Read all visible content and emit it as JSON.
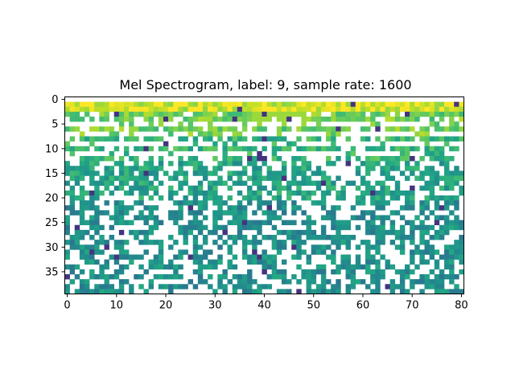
{
  "chart_data": {
    "type": "heatmap",
    "title": "Mel Spectrogram, label: 9, sample rate: 1600",
    "xlabel": "",
    "ylabel": "",
    "xlim": [
      -0.5,
      80.5
    ],
    "ylim": [
      39.5,
      -0.5
    ],
    "n_cols": 81,
    "n_rows": 40,
    "x_ticks": [
      0,
      10,
      20,
      30,
      40,
      50,
      60,
      70,
      80
    ],
    "y_ticks": [
      0,
      5,
      10,
      15,
      20,
      25,
      30,
      35
    ],
    "colormap": "viridis",
    "missing_color": "#ffffff",
    "grid": false,
    "legend": "none",
    "description_of_values": "log-mel energy per (frame, mel bin); blank cells are missing/-inf values",
    "row_profile_note": "rows 1-3 bright yellow (high energy), rows 4-12 yellow-green, rows 13-20 green, rows 21-39 teal with many blank cells",
    "seed": 9
  }
}
